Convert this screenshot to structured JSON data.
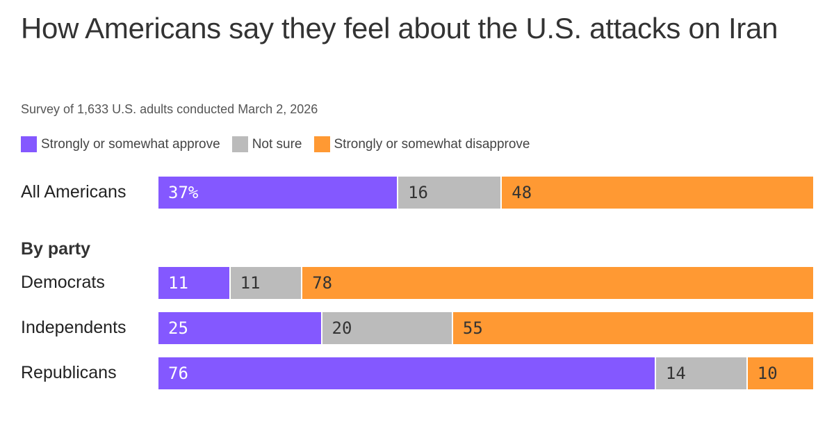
{
  "chart_data": {
    "type": "bar",
    "orientation": "horizontal-stacked",
    "title": "How Americans say they feel about the U.S. attacks on Iran",
    "subtitle": "Survey of 1,633 U.S. adults conducted March 2, 2026",
    "legend": [
      "Strongly or somewhat approve",
      "Not sure",
      "Strongly or somewhat disapprove"
    ],
    "colors": [
      "#8458FF",
      "#BBBBBB",
      "#FF9933"
    ],
    "section_label": "By party",
    "rows": [
      {
        "label": "All Americans",
        "values": [
          37,
          16,
          48
        ],
        "value_labels": [
          "37%",
          "16",
          "48"
        ]
      },
      {
        "label": "Democrats",
        "values": [
          11,
          11,
          78
        ],
        "value_labels": [
          "11",
          "11",
          "78"
        ]
      },
      {
        "label": "Independents",
        "values": [
          25,
          20,
          55
        ],
        "value_labels": [
          "25",
          "20",
          "55"
        ]
      },
      {
        "label": "Republicans",
        "values": [
          76,
          14,
          10
        ],
        "value_labels": [
          "76",
          "14",
          "10"
        ]
      }
    ]
  }
}
